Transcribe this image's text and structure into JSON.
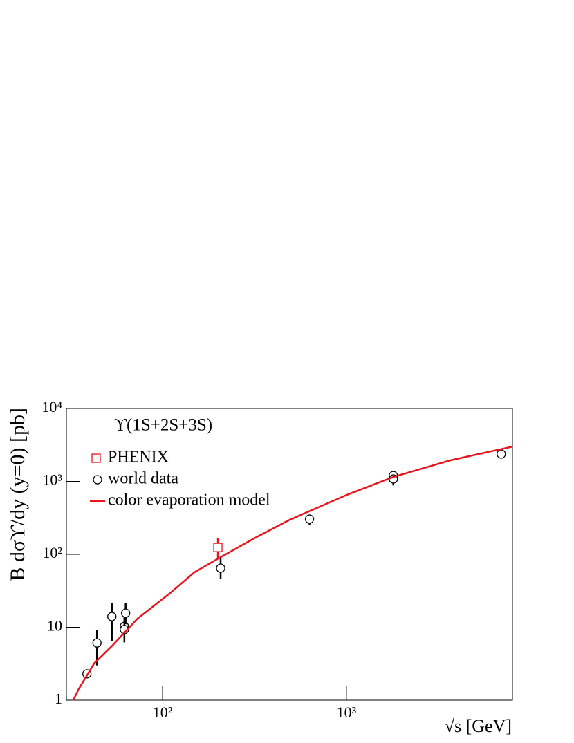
{
  "chart_data": {
    "type": "scatter",
    "annotation": "ϒ(1S+2S+3S)",
    "x_label": "√s  [GeV]",
    "y_label": "B dσϒ/dy (y=0)  [pb]",
    "log_x": true,
    "log_y": true,
    "xlim": [
      30,
      8000
    ],
    "xticks": [
      {
        "value": 100,
        "label": "10²"
      },
      {
        "value": 1000,
        "label": "10³"
      }
    ],
    "ylim": [
      1,
      10000
    ],
    "yticks": [
      1,
      10,
      {
        "value": 100,
        "label": "10²"
      },
      {
        "value": 1000,
        "label": "10³"
      },
      {
        "value": 10000,
        "label": "10⁴"
      }
    ],
    "legend": "top-left",
    "series": [
      {
        "name": "PHENIX",
        "color": "#e8141c",
        "marker": "square",
        "x": [
          200
        ],
        "values": [
          124
        ],
        "y_low": [
          88
        ],
        "y_high": [
          169
        ]
      },
      {
        "name": "world data",
        "color": "#000000",
        "marker": "circle",
        "x": [
          38.8,
          44,
          53,
          62,
          62,
          63,
          207,
          630,
          1800,
          1800,
          6950
        ],
        "values": [
          2.3,
          6.1,
          14,
          10.3,
          9.3,
          15.6,
          64.6,
          304,
          1200,
          1080,
          2370
        ],
        "y_low": [
          2.1,
          3.0,
          6.5,
          8.5,
          6.2,
          11,
          46.5,
          250,
          1100,
          880,
          2150
        ],
        "y_high": [
          2.6,
          9.2,
          21.6,
          12,
          14.6,
          21.6,
          91,
          345,
          1300,
          1150,
          2500
        ]
      },
      {
        "name": "color evaporation model",
        "color": "#e8141c",
        "marker": "line",
        "x": [
          32.7,
          35,
          42.5,
          53.7,
          73,
          110,
          149,
          207,
          324,
          492,
          1000,
          1800,
          3660,
          8000
        ],
        "values": [
          1,
          1.42,
          3.2,
          5.7,
          13.1,
          29.4,
          56.6,
          91.5,
          172,
          298,
          650,
          1150,
          1940,
          3000
        ]
      }
    ]
  }
}
